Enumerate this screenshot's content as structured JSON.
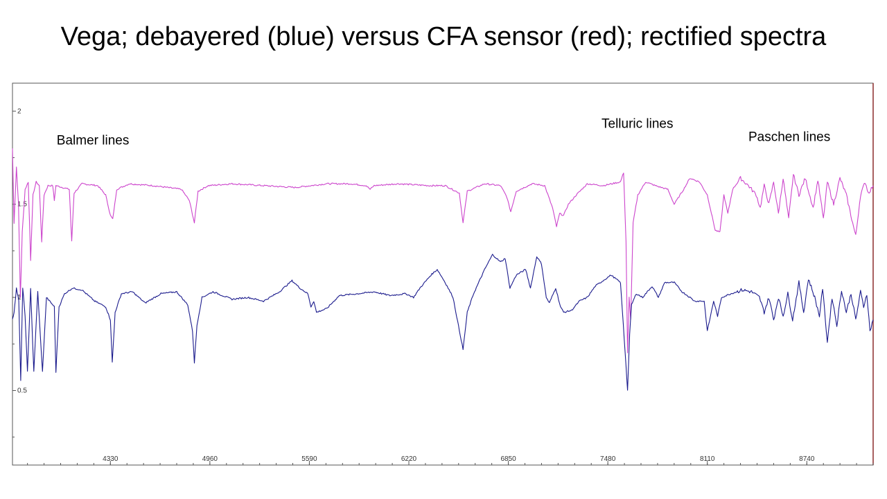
{
  "slide": {
    "title_star": "Vega;",
    "title_rest": " debayered (blue) versus CFA sensor (red); rectified spectra"
  },
  "colors": {
    "cfa_series": "#cc44cc",
    "debayered_series": "#1a1a8c",
    "right_edge": "#8b2a2a"
  },
  "chart_data": {
    "type": "line",
    "title": "",
    "xlabel": "",
    "ylabel": "",
    "xlim": [
      3710,
      9160
    ],
    "ylim": [
      0.1,
      2.15
    ],
    "x_ticks": [
      4330,
      4960,
      5590,
      6220,
      6850,
      7480,
      8110,
      8740
    ],
    "y_ticks": [
      0.5,
      1,
      1.5,
      2
    ],
    "grid": false,
    "annotations": [
      {
        "text": "Balmer lines",
        "x": 3990,
        "y": 1.82
      },
      {
        "text": "Telluric lines",
        "x": 7440,
        "y": 1.91
      },
      {
        "text": "Paschen lines",
        "x": 8370,
        "y": 1.84
      }
    ],
    "series": [
      {
        "color": "#cc44cc",
        "points": [
          [
            3710,
            1.8
          ],
          [
            3720,
            1.4
          ],
          [
            3735,
            1.7
          ],
          [
            3748,
            1.5
          ],
          [
            3760,
            1.0
          ],
          [
            3772,
            1.35
          ],
          [
            3790,
            1.58
          ],
          [
            3810,
            1.62
          ],
          [
            3825,
            1.2
          ],
          [
            3840,
            1.55
          ],
          [
            3860,
            1.62
          ],
          [
            3880,
            1.6
          ],
          [
            3895,
            1.3
          ],
          [
            3910,
            1.55
          ],
          [
            3935,
            1.6
          ],
          [
            3965,
            1.6
          ],
          [
            3975,
            1.52
          ],
          [
            3985,
            1.6
          ],
          [
            4070,
            1.58
          ],
          [
            4085,
            1.3
          ],
          [
            4100,
            1.56
          ],
          [
            4150,
            1.61
          ],
          [
            4250,
            1.6
          ],
          [
            4300,
            1.55
          ],
          [
            4330,
            1.44
          ],
          [
            4345,
            1.42
          ],
          [
            4370,
            1.58
          ],
          [
            4450,
            1.61
          ],
          [
            4600,
            1.6
          ],
          [
            4780,
            1.58
          ],
          [
            4830,
            1.52
          ],
          [
            4862,
            1.4
          ],
          [
            4885,
            1.57
          ],
          [
            4950,
            1.6
          ],
          [
            5100,
            1.61
          ],
          [
            5300,
            1.6
          ],
          [
            5500,
            1.59
          ],
          [
            5700,
            1.61
          ],
          [
            5850,
            1.61
          ],
          [
            5950,
            1.6
          ],
          [
            5975,
            1.58
          ],
          [
            6000,
            1.6
          ],
          [
            6150,
            1.61
          ],
          [
            6350,
            1.6
          ],
          [
            6450,
            1.6
          ],
          [
            6540,
            1.56
          ],
          [
            6563,
            1.4
          ],
          [
            6590,
            1.57
          ],
          [
            6700,
            1.61
          ],
          [
            6800,
            1.6
          ],
          [
            6840,
            1.54
          ],
          [
            6865,
            1.46
          ],
          [
            6900,
            1.57
          ],
          [
            7000,
            1.61
          ],
          [
            7080,
            1.6
          ],
          [
            7130,
            1.48
          ],
          [
            7155,
            1.38
          ],
          [
            7175,
            1.45
          ],
          [
            7200,
            1.44
          ],
          [
            7230,
            1.5
          ],
          [
            7280,
            1.55
          ],
          [
            7350,
            1.61
          ],
          [
            7450,
            1.6
          ],
          [
            7560,
            1.62
          ],
          [
            7580,
            1.67
          ],
          [
            7595,
            1.3
          ],
          [
            7605,
            0.7
          ],
          [
            7615,
            1.0
          ],
          [
            7625,
            0.88
          ],
          [
            7640,
            1.4
          ],
          [
            7670,
            1.55
          ],
          [
            7720,
            1.62
          ],
          [
            7780,
            1.6
          ],
          [
            7860,
            1.58
          ],
          [
            7900,
            1.5
          ],
          [
            7960,
            1.58
          ],
          [
            8000,
            1.64
          ],
          [
            8060,
            1.62
          ],
          [
            8110,
            1.55
          ],
          [
            8160,
            1.36
          ],
          [
            8190,
            1.35
          ],
          [
            8215,
            1.55
          ],
          [
            8240,
            1.45
          ],
          [
            8270,
            1.58
          ],
          [
            8320,
            1.64
          ],
          [
            8370,
            1.6
          ],
          [
            8420,
            1.55
          ],
          [
            8445,
            1.48
          ],
          [
            8470,
            1.6
          ],
          [
            8500,
            1.5
          ],
          [
            8530,
            1.62
          ],
          [
            8560,
            1.45
          ],
          [
            8590,
            1.64
          ],
          [
            8625,
            1.42
          ],
          [
            8655,
            1.66
          ],
          [
            8690,
            1.55
          ],
          [
            8730,
            1.64
          ],
          [
            8780,
            1.48
          ],
          [
            8810,
            1.63
          ],
          [
            8845,
            1.42
          ],
          [
            8870,
            1.62
          ],
          [
            8910,
            1.5
          ],
          [
            8950,
            1.64
          ],
          [
            8990,
            1.55
          ],
          [
            9030,
            1.4
          ],
          [
            9050,
            1.33
          ],
          [
            9080,
            1.55
          ],
          [
            9110,
            1.62
          ],
          [
            9130,
            1.56
          ],
          [
            9160,
            1.6
          ]
        ]
      },
      {
        "color": "#1a1a8c",
        "points": [
          [
            3710,
            0.88
          ],
          [
            3720,
            0.92
          ],
          [
            3735,
            1.05
          ],
          [
            3750,
            0.98
          ],
          [
            3762,
            0.55
          ],
          [
            3775,
            1.05
          ],
          [
            3790,
            0.9
          ],
          [
            3805,
            0.6
          ],
          [
            3825,
            1.05
          ],
          [
            3845,
            0.6
          ],
          [
            3870,
            1.03
          ],
          [
            3900,
            0.6
          ],
          [
            3925,
            1.0
          ],
          [
            3975,
            0.95
          ],
          [
            3985,
            0.6
          ],
          [
            4005,
            0.95
          ],
          [
            4040,
            1.02
          ],
          [
            4090,
            1.05
          ],
          [
            4150,
            1.04
          ],
          [
            4230,
            0.98
          ],
          [
            4300,
            0.95
          ],
          [
            4330,
            0.88
          ],
          [
            4342,
            0.65
          ],
          [
            4360,
            0.92
          ],
          [
            4400,
            1.02
          ],
          [
            4470,
            1.03
          ],
          [
            4550,
            0.97
          ],
          [
            4650,
            1.02
          ],
          [
            4750,
            1.03
          ],
          [
            4820,
            0.96
          ],
          [
            4850,
            0.82
          ],
          [
            4862,
            0.65
          ],
          [
            4878,
            0.85
          ],
          [
            4910,
            1.0
          ],
          [
            4980,
            1.03
          ],
          [
            5100,
            0.99
          ],
          [
            5200,
            1.0
          ],
          [
            5300,
            0.98
          ],
          [
            5400,
            1.03
          ],
          [
            5480,
            1.09
          ],
          [
            5530,
            1.05
          ],
          [
            5580,
            1.02
          ],
          [
            5600,
            0.95
          ],
          [
            5618,
            0.98
          ],
          [
            5635,
            0.92
          ],
          [
            5700,
            0.94
          ],
          [
            5780,
            1.01
          ],
          [
            5900,
            1.02
          ],
          [
            6000,
            1.03
          ],
          [
            6100,
            1.01
          ],
          [
            6200,
            1.02
          ],
          [
            6250,
            1.0
          ],
          [
            6290,
            1.05
          ],
          [
            6360,
            1.12
          ],
          [
            6400,
            1.15
          ],
          [
            6450,
            1.08
          ],
          [
            6500,
            1.0
          ],
          [
            6563,
            0.72
          ],
          [
            6590,
            0.92
          ],
          [
            6630,
            1.02
          ],
          [
            6700,
            1.15
          ],
          [
            6750,
            1.23
          ],
          [
            6800,
            1.19
          ],
          [
            6830,
            1.21
          ],
          [
            6860,
            1.05
          ],
          [
            6900,
            1.12
          ],
          [
            6960,
            1.15
          ],
          [
            6990,
            1.05
          ],
          [
            7030,
            1.22
          ],
          [
            7060,
            1.18
          ],
          [
            7090,
            1.0
          ],
          [
            7110,
            0.97
          ],
          [
            7150,
            1.05
          ],
          [
            7180,
            0.95
          ],
          [
            7200,
            0.92
          ],
          [
            7250,
            0.93
          ],
          [
            7300,
            0.98
          ],
          [
            7350,
            1.0
          ],
          [
            7400,
            1.06
          ],
          [
            7450,
            1.09
          ],
          [
            7500,
            1.12
          ],
          [
            7560,
            1.08
          ],
          [
            7590,
            0.7
          ],
          [
            7605,
            0.5
          ],
          [
            7618,
            0.8
          ],
          [
            7630,
            0.96
          ],
          [
            7660,
            1.02
          ],
          [
            7700,
            1.0
          ],
          [
            7760,
            1.06
          ],
          [
            7800,
            1.0
          ],
          [
            7840,
            1.08
          ],
          [
            7900,
            1.08
          ],
          [
            7950,
            1.03
          ],
          [
            8000,
            1.0
          ],
          [
            8030,
            0.98
          ],
          [
            8090,
            0.98
          ],
          [
            8110,
            0.82
          ],
          [
            8130,
            0.9
          ],
          [
            8150,
            0.98
          ],
          [
            8175,
            0.9
          ],
          [
            8200,
            1.0
          ],
          [
            8260,
            1.02
          ],
          [
            8330,
            1.04
          ],
          [
            8390,
            1.03
          ],
          [
            8440,
            1.0
          ],
          [
            8470,
            0.92
          ],
          [
            8500,
            1.0
          ],
          [
            8530,
            0.88
          ],
          [
            8560,
            1.0
          ],
          [
            8590,
            0.9
          ],
          [
            8620,
            1.02
          ],
          [
            8650,
            0.88
          ],
          [
            8690,
            1.08
          ],
          [
            8720,
            0.92
          ],
          [
            8750,
            1.1
          ],
          [
            8790,
            1.0
          ],
          [
            8820,
            0.9
          ],
          [
            8840,
            1.05
          ],
          [
            8870,
            0.76
          ],
          [
            8900,
            1.0
          ],
          [
            8930,
            0.85
          ],
          [
            8960,
            1.04
          ],
          [
            8990,
            0.92
          ],
          [
            9020,
            1.02
          ],
          [
            9050,
            0.88
          ],
          [
            9080,
            1.03
          ],
          [
            9100,
            0.95
          ],
          [
            9120,
            1.02
          ],
          [
            9140,
            0.82
          ],
          [
            9160,
            0.88
          ]
        ]
      }
    ]
  }
}
